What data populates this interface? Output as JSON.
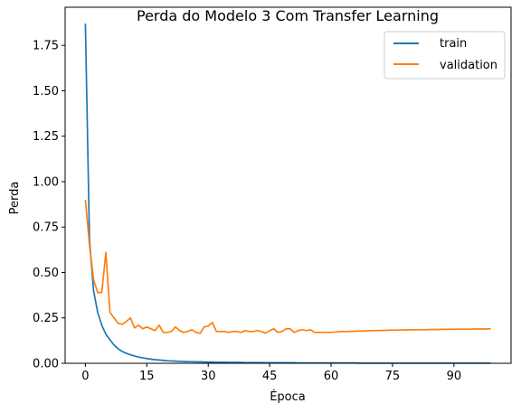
{
  "chart_data": {
    "type": "line",
    "title": "Perda do Modelo 3 Com Transfer Learning",
    "xlabel": "Época",
    "ylabel": "Perda",
    "xlim": [
      -4.95,
      103.95
    ],
    "ylim": [
      0,
      1.96
    ],
    "xticks": [
      0,
      15,
      30,
      45,
      60,
      75,
      90
    ],
    "xtick_labels": [
      "0",
      "15",
      "30",
      "45",
      "60",
      "75",
      "90"
    ],
    "yticks": [
      0.0,
      0.25,
      0.5,
      0.75,
      1.0,
      1.25,
      1.5,
      1.75
    ],
    "ytick_labels": [
      "0.00",
      "0.25",
      "0.50",
      "0.75",
      "1.00",
      "1.25",
      "1.50",
      "1.75"
    ],
    "grid": false,
    "legend_position": "top-right",
    "colors": {
      "train": "#1f77b4",
      "validation": "#ff7f0e"
    },
    "series": [
      {
        "name": "train",
        "x": [
          0,
          1,
          2,
          3,
          4,
          5,
          6,
          7,
          8,
          9,
          10,
          11,
          12,
          13,
          14,
          15,
          16,
          17,
          18,
          19,
          20,
          21,
          22,
          23,
          24,
          25,
          26,
          27,
          28,
          29,
          30,
          31,
          32,
          33,
          34,
          35,
          36,
          37,
          38,
          39,
          40,
          41,
          42,
          43,
          44,
          45,
          46,
          47,
          48,
          49,
          50,
          51,
          52,
          53,
          54,
          55,
          56,
          57,
          58,
          59,
          60,
          61,
          62,
          63,
          64,
          65,
          66,
          67,
          68,
          69,
          70,
          71,
          72,
          73,
          74,
          75,
          76,
          77,
          78,
          79,
          80,
          81,
          82,
          83,
          84,
          85,
          86,
          87,
          88,
          89,
          90,
          91,
          92,
          93,
          94,
          95,
          96,
          97,
          98,
          99
        ],
        "values": [
          1.87,
          0.68,
          0.4,
          0.28,
          0.21,
          0.16,
          0.13,
          0.1,
          0.08,
          0.065,
          0.055,
          0.047,
          0.04,
          0.034,
          0.03,
          0.026,
          0.023,
          0.02,
          0.018,
          0.016,
          0.014,
          0.013,
          0.012,
          0.011,
          0.01,
          0.009,
          0.009,
          0.008,
          0.008,
          0.007,
          0.007,
          0.007,
          0.006,
          0.006,
          0.006,
          0.005,
          0.005,
          0.005,
          0.005,
          0.004,
          0.004,
          0.004,
          0.004,
          0.004,
          0.003,
          0.003,
          0.003,
          0.003,
          0.003,
          0.003,
          0.003,
          0.003,
          0.002,
          0.002,
          0.002,
          0.002,
          0.002,
          0.002,
          0.002,
          0.002,
          0.002,
          0.002,
          0.002,
          0.002,
          0.002,
          0.002,
          0.002,
          0.001,
          0.001,
          0.001,
          0.001,
          0.001,
          0.001,
          0.001,
          0.001,
          0.001,
          0.001,
          0.001,
          0.001,
          0.001,
          0.001,
          0.001,
          0.001,
          0.001,
          0.001,
          0.001,
          0.001,
          0.001,
          0.001,
          0.001,
          0.001,
          0.001,
          0.001,
          0.001,
          0.001,
          0.001,
          0.001,
          0.001,
          0.001,
          0.001
        ]
      },
      {
        "name": "validation",
        "x": [
          0,
          1,
          2,
          3,
          4,
          5,
          6,
          7,
          8,
          9,
          10,
          11,
          12,
          13,
          14,
          15,
          16,
          17,
          18,
          19,
          20,
          21,
          22,
          23,
          24,
          25,
          26,
          27,
          28,
          29,
          30,
          31,
          32,
          33,
          34,
          35,
          36,
          37,
          38,
          39,
          40,
          41,
          42,
          43,
          44,
          45,
          46,
          47,
          48,
          49,
          50,
          51,
          52,
          53,
          54,
          55,
          56,
          57,
          58,
          59,
          60,
          61,
          62,
          63,
          64,
          65,
          66,
          67,
          68,
          69,
          70,
          71,
          72,
          73,
          74,
          75,
          76,
          77,
          78,
          79,
          80,
          81,
          82,
          83,
          84,
          85,
          86,
          87,
          88,
          89,
          90,
          91,
          92,
          93,
          94,
          95,
          96,
          97,
          98,
          99
        ],
        "values": [
          0.9,
          0.65,
          0.46,
          0.39,
          0.39,
          0.61,
          0.28,
          0.25,
          0.22,
          0.215,
          0.23,
          0.25,
          0.195,
          0.21,
          0.19,
          0.2,
          0.19,
          0.18,
          0.21,
          0.17,
          0.17,
          0.175,
          0.2,
          0.18,
          0.17,
          0.175,
          0.185,
          0.17,
          0.165,
          0.2,
          0.205,
          0.225,
          0.175,
          0.175,
          0.175,
          0.17,
          0.175,
          0.175,
          0.17,
          0.18,
          0.175,
          0.175,
          0.18,
          0.175,
          0.165,
          0.18,
          0.19,
          0.17,
          0.175,
          0.19,
          0.19,
          0.17,
          0.18,
          0.185,
          0.18,
          0.185,
          0.17,
          0.17,
          0.17,
          0.17,
          0.17,
          0.172,
          0.174,
          0.175,
          0.175,
          0.176,
          0.177,
          0.178,
          0.178,
          0.179,
          0.18,
          0.18,
          0.181,
          0.181,
          0.182,
          0.182,
          0.183,
          0.183,
          0.184,
          0.184,
          0.184,
          0.185,
          0.185,
          0.185,
          0.186,
          0.186,
          0.186,
          0.187,
          0.187,
          0.187,
          0.187,
          0.188,
          0.188,
          0.188,
          0.188,
          0.189,
          0.189,
          0.189,
          0.189,
          0.19
        ]
      }
    ]
  }
}
